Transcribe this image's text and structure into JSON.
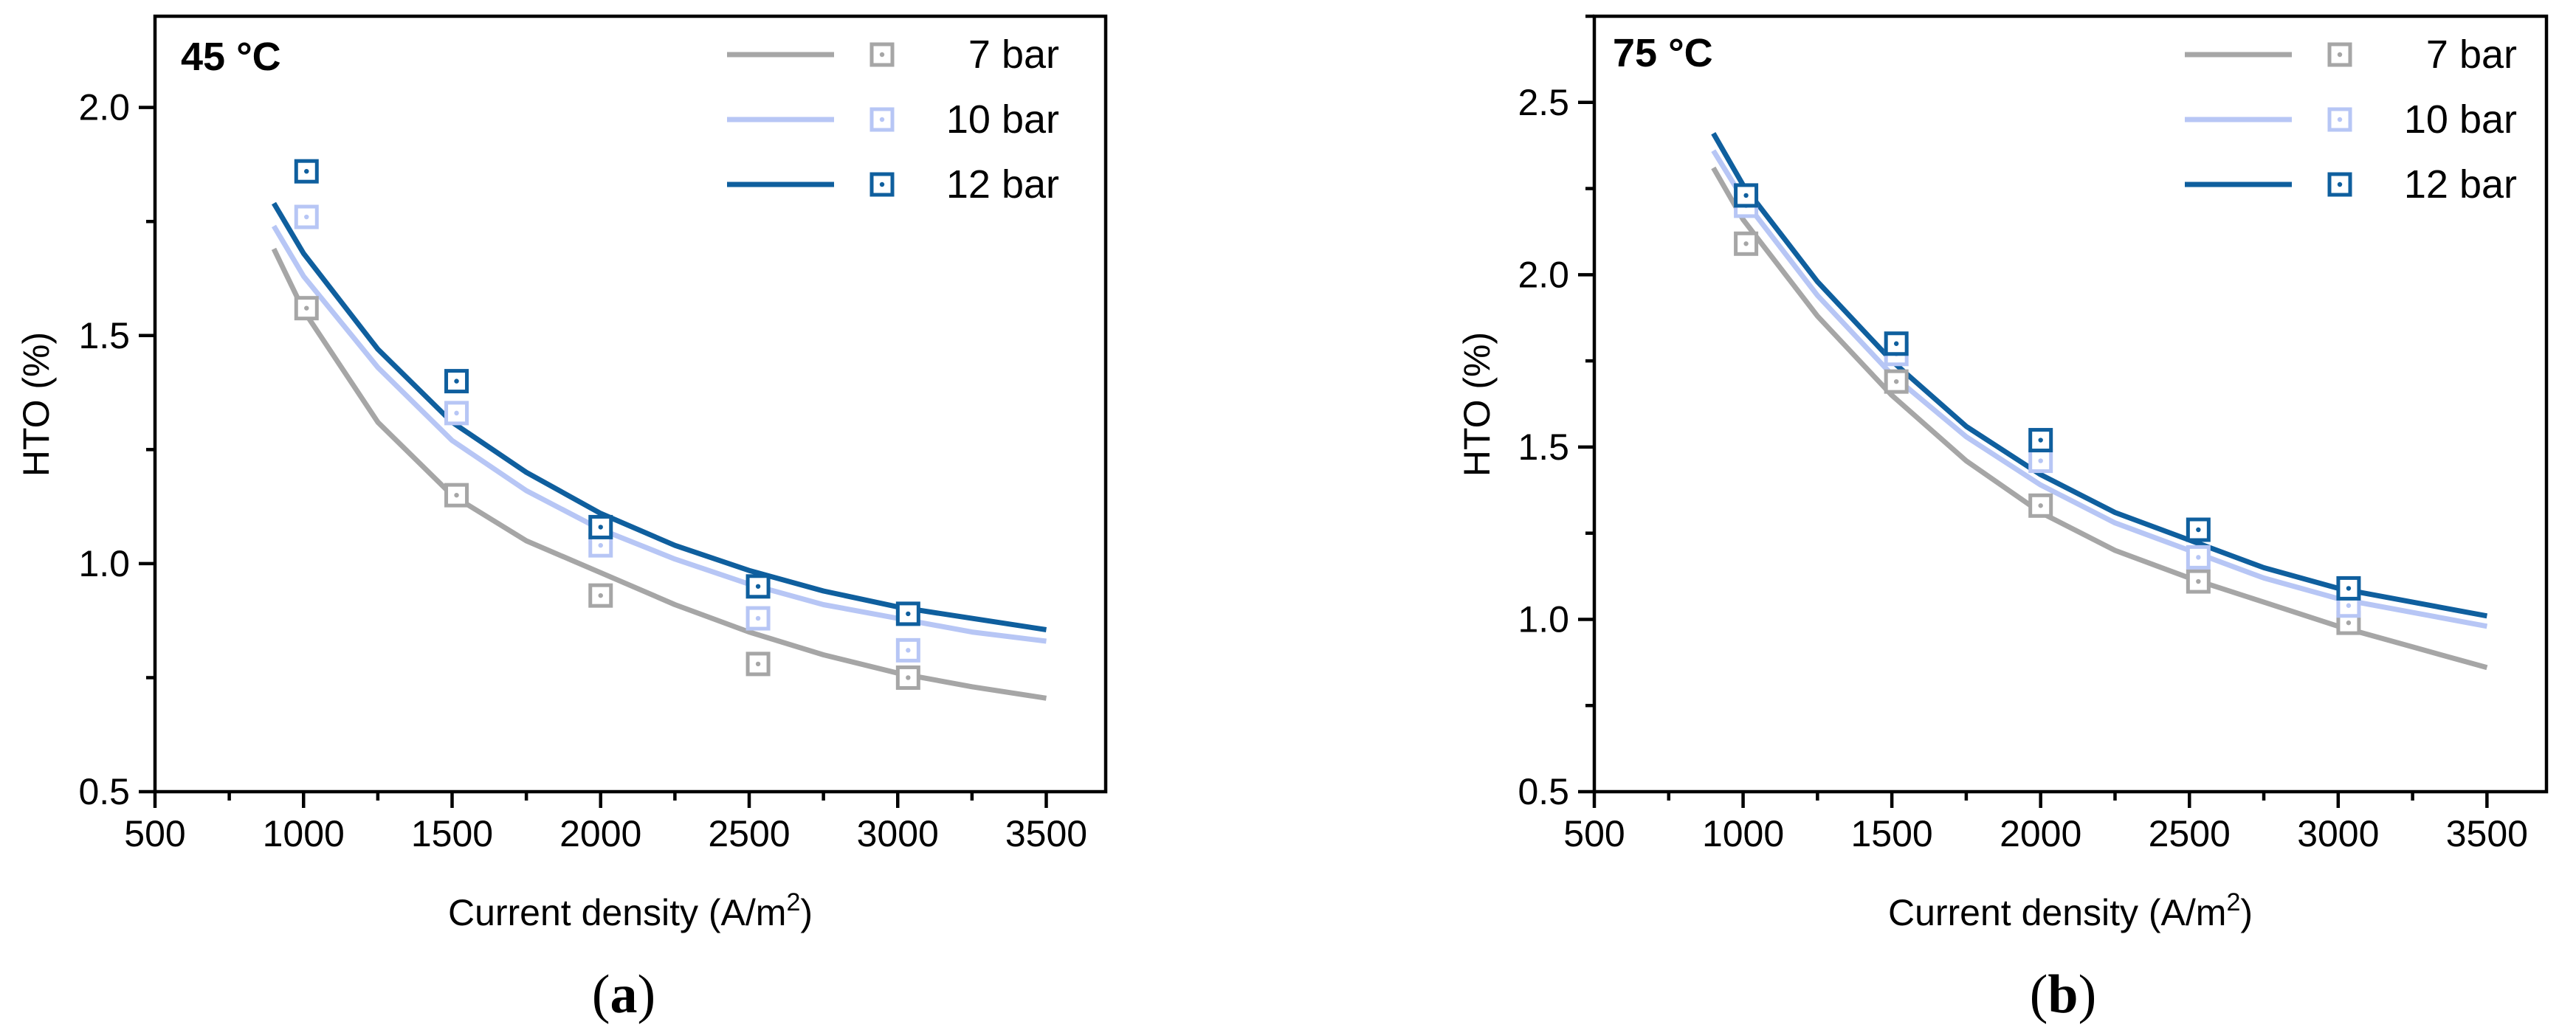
{
  "figure": {
    "panel_a_caption": {
      "open": "(",
      "letter": "a",
      "close": ")"
    },
    "panel_b_caption": {
      "open": "(",
      "letter": "b",
      "close": ")"
    }
  },
  "colors": {
    "7_bar": "#a6a6a6",
    "10_bar": "#b7c6f5",
    "12_bar": "#0f5f9e"
  },
  "chart_data": [
    {
      "type": "scatter",
      "panel": "a",
      "title": "45 °C",
      "xlabel": "Current density (A/m",
      "xlabel_sup": "2",
      "xlabel_end": ")",
      "ylabel": "HTO (%)",
      "xlim": [
        500,
        3700
      ],
      "ylim": [
        0.5,
        2.2
      ],
      "xticks": [
        500,
        1000,
        1500,
        2000,
        2500,
        3000,
        3500
      ],
      "xtick_labels": [
        "500",
        "1000",
        "1500",
        "2000",
        "2500",
        "3000",
        "3500"
      ],
      "yticks": [
        0.5,
        1.0,
        1.5,
        2.0
      ],
      "ytick_labels": [
        "0.5",
        "1.0",
        "1.5",
        "2.0"
      ],
      "legend_position": "top-right",
      "series": [
        {
          "name": "7 bar",
          "color_key": "7_bar",
          "points": {
            "x": [
              1010,
              1515,
              2000,
              2530,
              3035
            ],
            "y": [
              1.56,
              1.15,
              0.93,
              0.78,
              0.75
            ]
          },
          "fit": {
            "x": [
              900,
              1000,
              1250,
              1500,
              1750,
              2000,
              2250,
              2500,
              2750,
              3000,
              3250,
              3500
            ],
            "y": [
              1.69,
              1.555,
              1.31,
              1.15,
              1.05,
              0.98,
              0.91,
              0.85,
              0.8,
              0.76,
              0.73,
              0.705
            ]
          }
        },
        {
          "name": "10 bar",
          "color_key": "10_bar",
          "points": {
            "x": [
              1010,
              1515,
              2000,
              2530,
              3035
            ],
            "y": [
              1.76,
              1.33,
              1.04,
              0.88,
              0.81
            ]
          },
          "fit": {
            "x": [
              900,
              1000,
              1250,
              1500,
              1750,
              2000,
              2250,
              2500,
              2750,
              3000,
              3250,
              3500
            ],
            "y": [
              1.74,
              1.63,
              1.43,
              1.27,
              1.16,
              1.075,
              1.01,
              0.955,
              0.91,
              0.88,
              0.85,
              0.83
            ]
          }
        },
        {
          "name": "12 bar",
          "color_key": "12_bar",
          "points": {
            "x": [
              1010,
              1515,
              2000,
              2530,
              3035
            ],
            "y": [
              1.86,
              1.4,
              1.08,
              0.95,
              0.89
            ]
          },
          "fit": {
            "x": [
              900,
              1000,
              1250,
              1500,
              1750,
              2000,
              2250,
              2500,
              2750,
              3000,
              3250,
              3500
            ],
            "y": [
              1.79,
              1.68,
              1.47,
              1.31,
              1.2,
              1.11,
              1.04,
              0.985,
              0.94,
              0.905,
              0.88,
              0.855
            ]
          }
        }
      ]
    },
    {
      "type": "scatter",
      "panel": "b",
      "title": "75 °C",
      "xlabel": "Current density (A/m",
      "xlabel_sup": "2",
      "xlabel_end": ")",
      "ylabel": "HTO (%)",
      "xlim": [
        500,
        3700
      ],
      "ylim": [
        0.5,
        2.75
      ],
      "xticks": [
        500,
        1000,
        1500,
        2000,
        2500,
        3000,
        3500
      ],
      "xtick_labels": [
        "500",
        "1000",
        "1500",
        "2000",
        "2500",
        "3000",
        "3500"
      ],
      "yticks": [
        0.5,
        1.0,
        1.5,
        2.0,
        2.5
      ],
      "ytick_labels": [
        "0.5",
        "1.0",
        "1.5",
        "2.0",
        "2.5"
      ],
      "legend_position": "top-right",
      "series": [
        {
          "name": "7 bar",
          "color_key": "7_bar",
          "points": {
            "x": [
              1010,
              1515,
              2000,
              2530,
              3035
            ],
            "y": [
              2.09,
              1.69,
              1.33,
              1.11,
              0.99
            ]
          },
          "fit": {
            "x": [
              900,
              1000,
              1250,
              1500,
              1750,
              2000,
              2250,
              2500,
              2750,
              3000,
              3250,
              3500
            ],
            "y": [
              2.31,
              2.16,
              1.88,
              1.65,
              1.46,
              1.31,
              1.2,
              1.12,
              1.05,
              0.98,
              0.92,
              0.86
            ]
          }
        },
        {
          "name": "10 bar",
          "color_key": "10_bar",
          "points": {
            "x": [
              1010,
              1515,
              2000,
              2530,
              3035
            ],
            "y": [
              2.2,
              1.77,
              1.46,
              1.18,
              1.04
            ]
          },
          "fit": {
            "x": [
              900,
              1000,
              1250,
              1500,
              1750,
              2000,
              2250,
              2500,
              2750,
              3000,
              3250,
              3500
            ],
            "y": [
              2.36,
              2.22,
              1.94,
              1.71,
              1.53,
              1.39,
              1.28,
              1.2,
              1.12,
              1.06,
              1.02,
              0.98
            ]
          }
        },
        {
          "name": "12 bar",
          "color_key": "12_bar",
          "points": {
            "x": [
              1010,
              1515,
              2000,
              2530,
              3035
            ],
            "y": [
              2.23,
              1.8,
              1.52,
              1.26,
              1.09
            ]
          },
          "fit": {
            "x": [
              900,
              1000,
              1250,
              1500,
              1750,
              2000,
              2250,
              2500,
              2750,
              3000,
              3250,
              3500
            ],
            "y": [
              2.41,
              2.26,
              1.98,
              1.75,
              1.56,
              1.42,
              1.31,
              1.23,
              1.15,
              1.09,
              1.05,
              1.01
            ]
          }
        }
      ]
    }
  ]
}
